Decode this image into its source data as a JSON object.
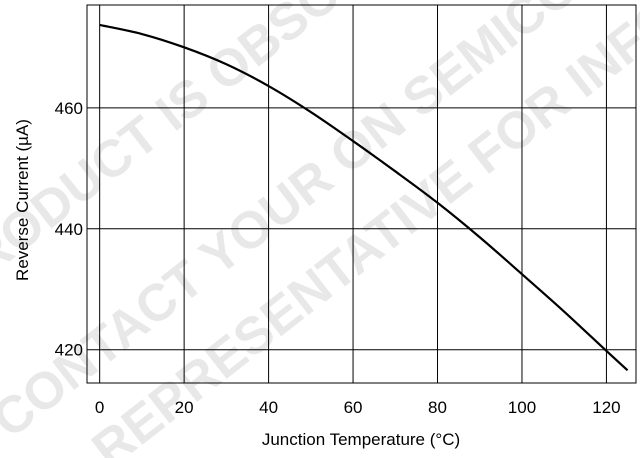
{
  "chart_data": {
    "type": "line",
    "title": "",
    "xlabel": "Junction Temperature (°C)",
    "ylabel": "Reverse Current (µA)",
    "xlim": [
      -3,
      127
    ],
    "ylim": [
      414.5,
      477
    ],
    "xticks": [
      0,
      20,
      40,
      60,
      80,
      100,
      120
    ],
    "yticks": [
      420,
      440,
      460
    ],
    "xtick_labels": [
      "0",
      "20",
      "40",
      "60",
      "80",
      "100",
      "120"
    ],
    "ytick_labels": [
      "420",
      "440",
      "460"
    ],
    "grid": true,
    "legend": "none",
    "series": [
      {
        "x": [
          0,
          10,
          20,
          30,
          40,
          50,
          60,
          70,
          80,
          90,
          100,
          110,
          120,
          125
        ],
        "y": [
          473.7,
          472.2,
          470.0,
          467.2,
          463.6,
          459.3,
          454.5,
          449.5,
          444.3,
          438.6,
          432.5,
          426.3,
          419.8,
          416.6
        ]
      }
    ]
  },
  "watermark": {
    "lines": [
      "PRODUCT IS OBSOLETE",
      "CONTACT YOUR ON SEMICONDUCTOR",
      "REPRESENTATIVE FOR INFORMATION"
    ]
  }
}
